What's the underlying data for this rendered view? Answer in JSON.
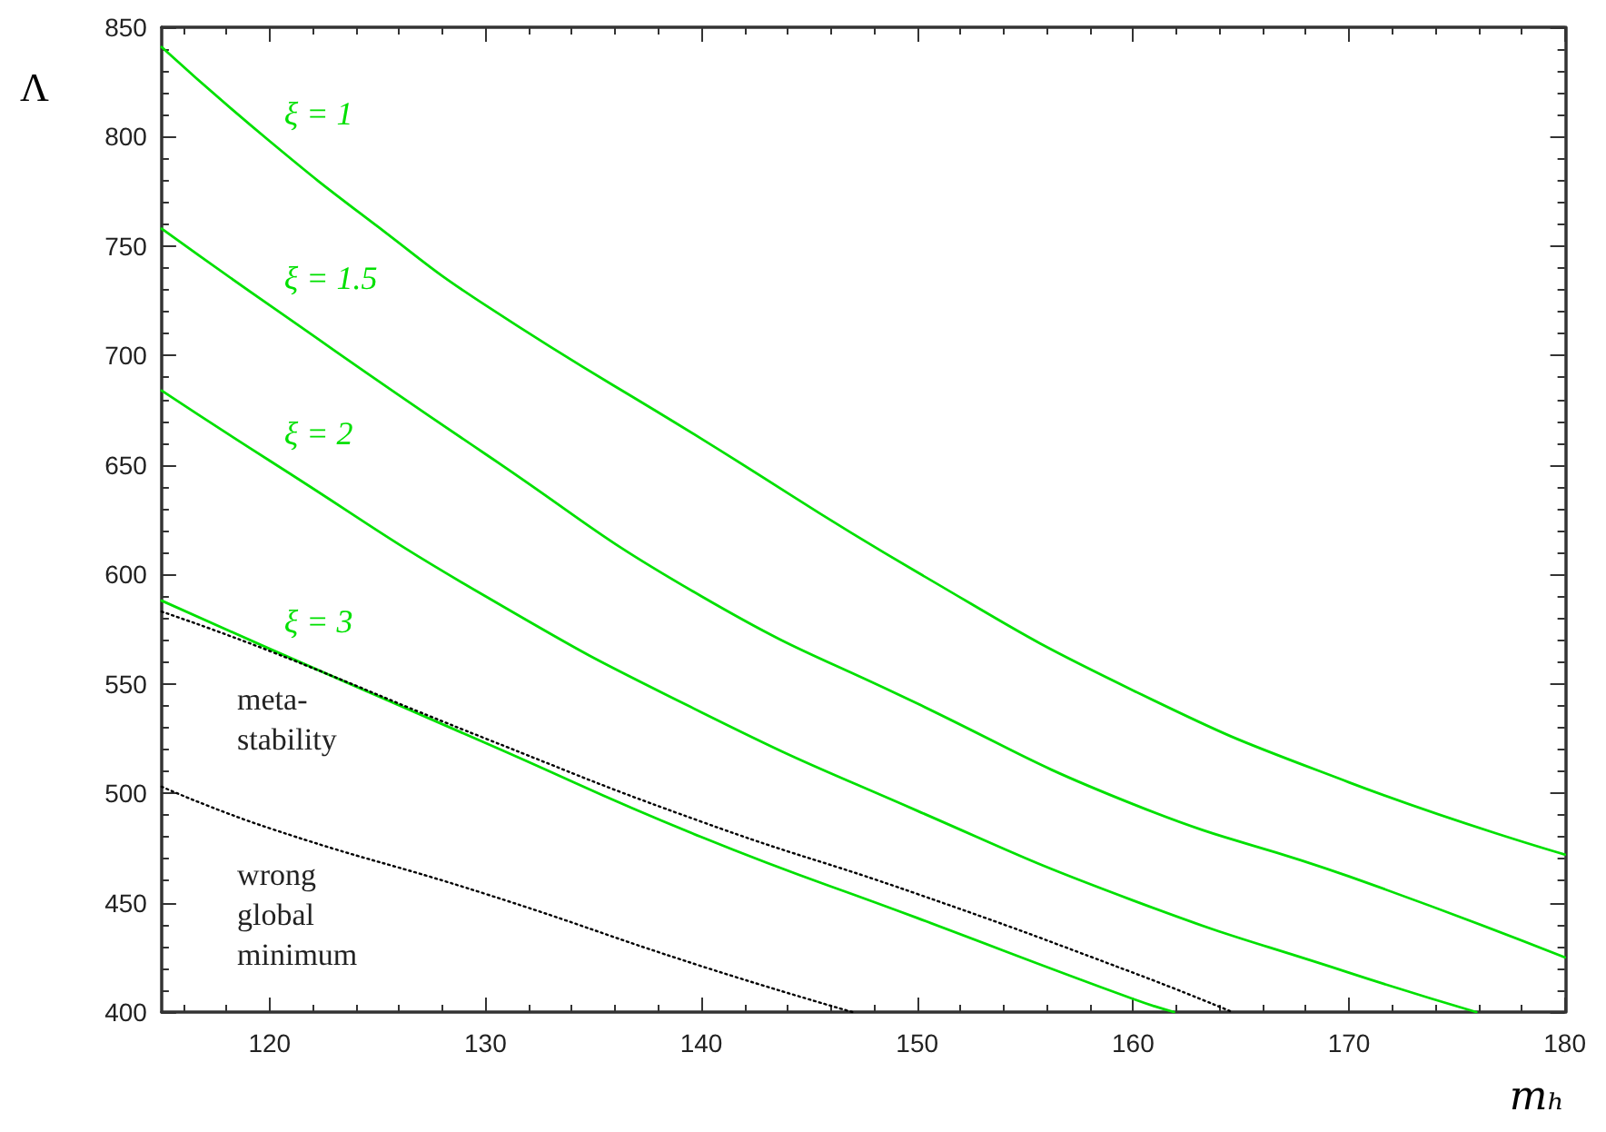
{
  "chart_data": {
    "type": "line",
    "xlabel": "mₕ",
    "ylabel": "Λ",
    "xlim": [
      115,
      180
    ],
    "ylim": [
      400,
      850
    ],
    "xticks": [
      120,
      130,
      140,
      150,
      160,
      170,
      180
    ],
    "yticks": [
      400,
      450,
      500,
      550,
      600,
      650,
      700,
      750,
      800,
      850
    ],
    "grid": false,
    "legend": false,
    "annotations": [
      "meta-\nstability",
      "wrong\nglobal\nminimum"
    ],
    "series": [
      {
        "name": "ξ = 1",
        "color": "#00e000",
        "line_style": "solid",
        "x": [
          115,
          120,
          125,
          130,
          140,
          150,
          160,
          170,
          180
        ],
        "values": [
          841,
          798,
          759,
          723,
          662,
          601,
          547,
          505,
          472
        ]
      },
      {
        "name": "ξ = 1.5",
        "color": "#00e000",
        "line_style": "solid",
        "x": [
          115,
          120,
          130,
          140,
          150,
          160,
          170,
          180
        ],
        "values": [
          758,
          723,
          655,
          590,
          541,
          495,
          462,
          425
        ]
      },
      {
        "name": "ξ = 2",
        "color": "#00e000",
        "line_style": "solid",
        "x": [
          115,
          120,
          130,
          140,
          150,
          160,
          170,
          175.9
        ],
        "values": [
          684,
          652,
          590,
          537,
          492,
          451,
          418,
          400
        ]
      },
      {
        "name": "ξ = 3",
        "color": "#00e000",
        "line_style": "solid",
        "x": [
          115,
          120,
          130,
          140,
          150,
          160,
          161.9
        ],
        "values": [
          588,
          566,
          523,
          480,
          443,
          406,
          400
        ]
      },
      {
        "color": "#000000",
        "line_style": "dotted",
        "x": [
          115,
          120,
          130,
          140,
          150,
          160,
          164.6
        ],
        "values": [
          583,
          565,
          525,
          487,
          454,
          418,
          400
        ]
      },
      {
        "color": "#000000",
        "line_style": "dotted",
        "x": [
          115,
          120,
          130,
          140,
          147
        ],
        "values": [
          503,
          484,
          454,
          421,
          400
        ]
      }
    ]
  }
}
